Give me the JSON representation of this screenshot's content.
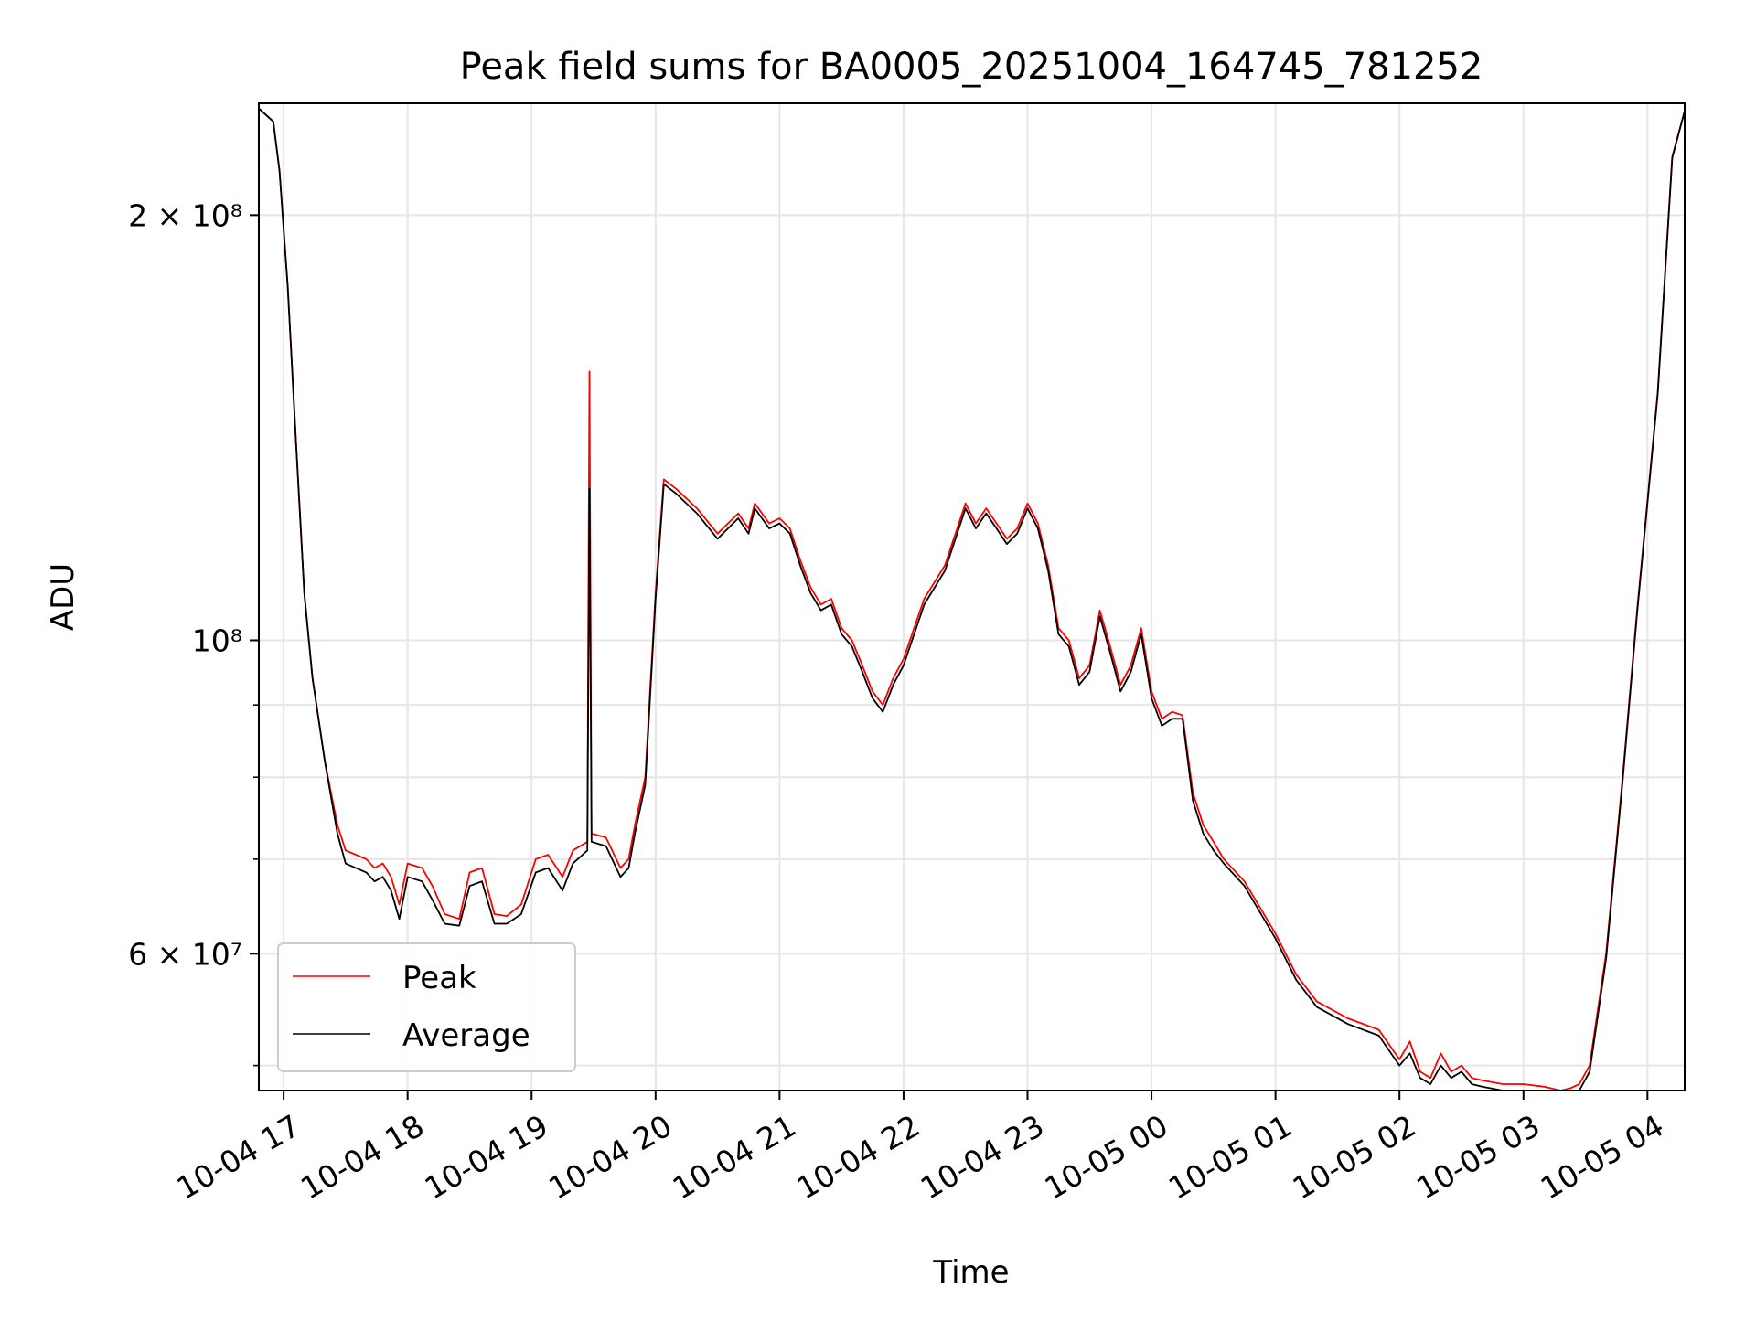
{
  "chart_data": {
    "type": "line",
    "title": "Peak field sums for BA0005_20251004_164745_781252",
    "xlabel": "Time",
    "ylabel": "ADU",
    "yscale": "log",
    "xlim": [
      "2025-10-04 16:48",
      "2025-10-05 04:18"
    ],
    "ylim": [
      48000000,
      240000000
    ],
    "grid": true,
    "legend_position": "lower-left",
    "xticks": [
      {
        "value": "2025-10-04 17:00",
        "label": "10-04 17"
      },
      {
        "value": "2025-10-04 18:00",
        "label": "10-04 18"
      },
      {
        "value": "2025-10-04 19:00",
        "label": "10-04 19"
      },
      {
        "value": "2025-10-04 20:00",
        "label": "10-04 20"
      },
      {
        "value": "2025-10-04 21:00",
        "label": "10-04 21"
      },
      {
        "value": "2025-10-04 22:00",
        "label": "10-04 22"
      },
      {
        "value": "2025-10-04 23:00",
        "label": "10-04 23"
      },
      {
        "value": "2025-10-05 00:00",
        "label": "10-05 00"
      },
      {
        "value": "2025-10-05 01:00",
        "label": "10-05 01"
      },
      {
        "value": "2025-10-05 02:00",
        "label": "10-05 02"
      },
      {
        "value": "2025-10-05 03:00",
        "label": "10-05 03"
      },
      {
        "value": "2025-10-05 04:00",
        "label": "10-05 04"
      }
    ],
    "yticks_major": [
      {
        "value": 60000000,
        "label": "6 × 10⁷"
      },
      {
        "value": 100000000,
        "label": "10⁸"
      },
      {
        "value": 200000000,
        "label": "2 × 10⁸"
      }
    ],
    "yticks_minor": [
      50000000,
      70000000,
      80000000,
      90000000
    ],
    "series": [
      {
        "name": "Peak",
        "color": "#ff0000",
        "x": [
          "2025-10-04 16:48",
          "2025-10-04 16:55",
          "2025-10-04 16:58",
          "2025-10-04 17:02",
          "2025-10-04 17:06",
          "2025-10-04 17:10",
          "2025-10-04 17:14",
          "2025-10-04 17:20",
          "2025-10-04 17:26",
          "2025-10-04 17:30",
          "2025-10-04 17:40",
          "2025-10-04 17:44",
          "2025-10-04 17:48",
          "2025-10-04 17:52",
          "2025-10-04 17:56",
          "2025-10-04 18:00",
          "2025-10-04 18:07",
          "2025-10-04 18:12",
          "2025-10-04 18:18",
          "2025-10-04 18:25",
          "2025-10-04 18:30",
          "2025-10-04 18:36",
          "2025-10-04 18:42",
          "2025-10-04 18:48",
          "2025-10-04 18:55",
          "2025-10-04 19:02",
          "2025-10-04 19:08",
          "2025-10-04 19:15",
          "2025-10-04 19:20",
          "2025-10-04 19:27",
          "2025-10-04 19:28",
          "2025-10-04 19:29",
          "2025-10-04 19:36",
          "2025-10-04 19:43",
          "2025-10-04 19:47",
          "2025-10-04 19:50",
          "2025-10-04 19:55",
          "2025-10-04 20:00",
          "2025-10-04 20:04",
          "2025-10-04 20:10",
          "2025-10-04 20:20",
          "2025-10-04 20:30",
          "2025-10-04 20:40",
          "2025-10-04 20:45",
          "2025-10-04 20:48",
          "2025-10-04 20:55",
          "2025-10-04 21:00",
          "2025-10-04 21:05",
          "2025-10-04 21:10",
          "2025-10-04 21:15",
          "2025-10-04 21:20",
          "2025-10-04 21:25",
          "2025-10-04 21:30",
          "2025-10-04 21:35",
          "2025-10-04 21:40",
          "2025-10-04 21:45",
          "2025-10-04 21:50",
          "2025-10-04 21:55",
          "2025-10-04 22:00",
          "2025-10-04 22:10",
          "2025-10-04 22:20",
          "2025-10-04 22:30",
          "2025-10-04 22:35",
          "2025-10-04 22:40",
          "2025-10-04 22:45",
          "2025-10-04 22:50",
          "2025-10-04 22:55",
          "2025-10-04 23:00",
          "2025-10-04 23:05",
          "2025-10-04 23:10",
          "2025-10-04 23:15",
          "2025-10-04 23:20",
          "2025-10-04 23:25",
          "2025-10-04 23:30",
          "2025-10-04 23:35",
          "2025-10-04 23:40",
          "2025-10-04 23:45",
          "2025-10-04 23:50",
          "2025-10-04 23:55",
          "2025-10-05 00:00",
          "2025-10-05 00:05",
          "2025-10-05 00:10",
          "2025-10-05 00:15",
          "2025-10-05 00:20",
          "2025-10-05 00:25",
          "2025-10-05 00:30",
          "2025-10-05 00:35",
          "2025-10-05 00:45",
          "2025-10-05 01:00",
          "2025-10-05 01:10",
          "2025-10-05 01:20",
          "2025-10-05 01:35",
          "2025-10-05 01:50",
          "2025-10-05 02:00",
          "2025-10-05 02:05",
          "2025-10-05 02:10",
          "2025-10-05 02:15",
          "2025-10-05 02:20",
          "2025-10-05 02:25",
          "2025-10-05 02:30",
          "2025-10-05 02:35",
          "2025-10-05 02:40",
          "2025-10-05 02:50",
          "2025-10-05 03:00",
          "2025-10-05 03:10",
          "2025-10-05 03:18",
          "2025-10-05 03:23",
          "2025-10-05 03:27",
          "2025-10-05 03:32",
          "2025-10-05 03:40",
          "2025-10-05 03:48",
          "2025-10-05 03:55",
          "2025-10-05 04:05",
          "2025-10-05 04:12",
          "2025-10-05 04:18"
        ],
        "y": [
          238000000,
          233000000,
          215000000,
          178000000,
          138000000,
          108000000,
          94000000,
          82000000,
          74000000,
          71000000,
          70000000,
          69000000,
          69500000,
          68000000,
          65000000,
          69500000,
          69000000,
          67000000,
          64000000,
          63500000,
          68500000,
          69000000,
          64000000,
          63800000,
          65000000,
          70000000,
          70500000,
          68000000,
          71000000,
          72000000,
          155000000,
          73000000,
          72500000,
          69000000,
          70000000,
          74000000,
          80000000,
          108000000,
          130000000,
          128000000,
          124000000,
          119000000,
          123000000,
          120000000,
          125000000,
          121000000,
          122000000,
          120000000,
          114000000,
          109000000,
          106000000,
          107000000,
          102000000,
          100000000,
          96000000,
          92000000,
          90000000,
          94000000,
          97000000,
          107000000,
          113000000,
          125000000,
          121000000,
          124000000,
          121000000,
          118000000,
          120000000,
          125000000,
          121000000,
          113000000,
          102000000,
          100000000,
          94000000,
          96000000,
          105000000,
          99000000,
          93000000,
          96000000,
          102000000,
          92000000,
          88000000,
          89000000,
          88500000,
          78000000,
          74000000,
          72000000,
          70000000,
          67500000,
          62000000,
          58000000,
          55500000,
          54000000,
          53000000,
          50500000,
          52000000,
          49500000,
          49000000,
          51000000,
          49500000,
          50000000,
          49000000,
          48800000,
          48500000,
          48500000,
          48300000,
          48000000,
          48200000,
          48500000,
          50000000,
          60000000,
          80000000,
          105000000,
          150000000,
          220000000,
          237000000
        ]
      },
      {
        "name": "Average",
        "color": "#000000",
        "x": [
          "2025-10-04 16:48",
          "2025-10-04 16:55",
          "2025-10-04 16:58",
          "2025-10-04 17:02",
          "2025-10-04 17:06",
          "2025-10-04 17:10",
          "2025-10-04 17:14",
          "2025-10-04 17:20",
          "2025-10-04 17:26",
          "2025-10-04 17:30",
          "2025-10-04 17:40",
          "2025-10-04 17:44",
          "2025-10-04 17:48",
          "2025-10-04 17:52",
          "2025-10-04 17:56",
          "2025-10-04 18:00",
          "2025-10-04 18:07",
          "2025-10-04 18:12",
          "2025-10-04 18:18",
          "2025-10-04 18:25",
          "2025-10-04 18:30",
          "2025-10-04 18:36",
          "2025-10-04 18:42",
          "2025-10-04 18:48",
          "2025-10-04 18:55",
          "2025-10-04 19:02",
          "2025-10-04 19:08",
          "2025-10-04 19:15",
          "2025-10-04 19:20",
          "2025-10-04 19:27",
          "2025-10-04 19:28",
          "2025-10-04 19:29",
          "2025-10-04 19:36",
          "2025-10-04 19:43",
          "2025-10-04 19:47",
          "2025-10-04 19:50",
          "2025-10-04 19:55",
          "2025-10-04 20:00",
          "2025-10-04 20:04",
          "2025-10-04 20:10",
          "2025-10-04 20:20",
          "2025-10-04 20:30",
          "2025-10-04 20:40",
          "2025-10-04 20:45",
          "2025-10-04 20:48",
          "2025-10-04 20:55",
          "2025-10-04 21:00",
          "2025-10-04 21:05",
          "2025-10-04 21:10",
          "2025-10-04 21:15",
          "2025-10-04 21:20",
          "2025-10-04 21:25",
          "2025-10-04 21:30",
          "2025-10-04 21:35",
          "2025-10-04 21:40",
          "2025-10-04 21:45",
          "2025-10-04 21:50",
          "2025-10-04 21:55",
          "2025-10-04 22:00",
          "2025-10-04 22:10",
          "2025-10-04 22:20",
          "2025-10-04 22:30",
          "2025-10-04 22:35",
          "2025-10-04 22:40",
          "2025-10-04 22:45",
          "2025-10-04 22:50",
          "2025-10-04 22:55",
          "2025-10-04 23:00",
          "2025-10-04 23:05",
          "2025-10-04 23:10",
          "2025-10-04 23:15",
          "2025-10-04 23:20",
          "2025-10-04 23:25",
          "2025-10-04 23:30",
          "2025-10-04 23:35",
          "2025-10-04 23:40",
          "2025-10-04 23:45",
          "2025-10-04 23:50",
          "2025-10-04 23:55",
          "2025-10-05 00:00",
          "2025-10-05 00:05",
          "2025-10-05 00:10",
          "2025-10-05 00:15",
          "2025-10-05 00:20",
          "2025-10-05 00:25",
          "2025-10-05 00:30",
          "2025-10-05 00:35",
          "2025-10-05 00:45",
          "2025-10-05 01:00",
          "2025-10-05 01:10",
          "2025-10-05 01:20",
          "2025-10-05 01:35",
          "2025-10-05 01:50",
          "2025-10-05 02:00",
          "2025-10-05 02:05",
          "2025-10-05 02:10",
          "2025-10-05 02:15",
          "2025-10-05 02:20",
          "2025-10-05 02:25",
          "2025-10-05 02:30",
          "2025-10-05 02:35",
          "2025-10-05 02:40",
          "2025-10-05 02:50",
          "2025-10-05 03:00",
          "2025-10-05 03:10",
          "2025-10-05 03:18",
          "2025-10-05 03:23",
          "2025-10-05 03:27",
          "2025-10-05 03:32",
          "2025-10-05 03:40",
          "2025-10-05 03:48",
          "2025-10-05 03:55",
          "2025-10-05 04:05",
          "2025-10-05 04:12",
          "2025-10-05 04:18"
        ],
        "y": [
          238000000,
          233000000,
          215000000,
          178000000,
          138000000,
          108000000,
          94000000,
          82000000,
          73000000,
          69500000,
          68500000,
          67500000,
          68000000,
          66500000,
          63500000,
          68000000,
          67500000,
          65500000,
          63000000,
          62800000,
          67000000,
          67500000,
          63000000,
          63000000,
          64000000,
          68500000,
          69000000,
          66500000,
          69500000,
          71000000,
          128000000,
          72000000,
          71500000,
          68000000,
          69000000,
          73000000,
          79000000,
          107000000,
          129000000,
          127000000,
          123000000,
          118000000,
          122000000,
          119000000,
          124000000,
          120000000,
          121000000,
          119000000,
          113000000,
          108000000,
          105000000,
          106000000,
          101000000,
          99000000,
          95000000,
          91000000,
          89000000,
          93000000,
          96000000,
          106000000,
          112000000,
          124000000,
          120000000,
          123000000,
          120000000,
          117000000,
          119000000,
          124000000,
          120000000,
          112000000,
          101000000,
          99000000,
          93000000,
          95000000,
          104000000,
          98000000,
          92000000,
          95000000,
          101000000,
          91000000,
          87000000,
          88000000,
          88000000,
          77000000,
          73000000,
          71000000,
          69500000,
          67000000,
          61500000,
          57500000,
          55000000,
          53500000,
          52500000,
          50000000,
          51000000,
          49000000,
          48500000,
          50000000,
          49000000,
          49500000,
          48500000,
          48300000,
          48000000,
          48000000,
          47800000,
          47600000,
          47800000,
          48000000,
          49500000,
          59500000,
          79500000,
          104500000,
          149500000,
          219500000,
          237000000
        ]
      }
    ]
  }
}
